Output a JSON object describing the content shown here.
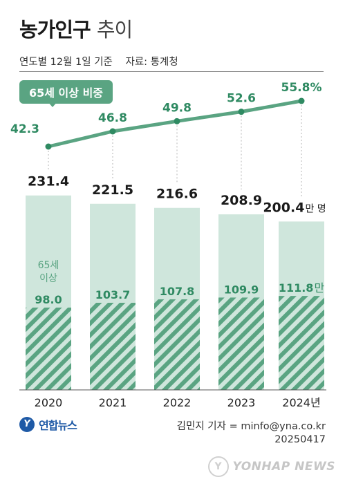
{
  "title": {
    "main": "농가인구",
    "suffix": "추이"
  },
  "subtitle": {
    "basis": "연도별 12월 1일 기준",
    "source": "자료: 통계청"
  },
  "badge": "65세 이상 비중",
  "colors": {
    "bar_light": "#cfe6dc",
    "hatch": "#5aa482",
    "line": "#5aa482",
    "label_green": "#2f8a62"
  },
  "chart_data": {
    "type": "bar",
    "categories": [
      "2020",
      "2021",
      "2022",
      "2023",
      "2024년"
    ],
    "series": [
      {
        "name": "",
        "values": [
          231.4,
          221.5,
          216.6,
          208.9,
          200.4
        ]
      },
      {
        "name": "65세 이상",
        "values": [
          98.0,
          103.7,
          107.8,
          109.9,
          111.8
        ]
      }
    ],
    "line": {
      "name": "65세 이상 비중",
      "values": [
        42.3,
        46.8,
        49.8,
        52.6,
        55.8
      ]
    },
    "total_labels": [
      "231.4",
      "221.5",
      "216.6",
      "208.9",
      "200.4"
    ],
    "total_unit": "만 명",
    "senior_labels": [
      "98.0",
      "103.7",
      "107.8",
      "109.9",
      "111.8"
    ],
    "senior_unit": "만",
    "senior_caption": [
      "65세",
      "이상"
    ],
    "line_labels": [
      "42.3",
      "46.8",
      "49.8",
      "52.6",
      "55.8%"
    ],
    "ylim": [
      0,
      240
    ]
  },
  "footer": {
    "logo_text": "연합뉴스",
    "reporter": "김민지 기자 = minfo@yna.co.kr",
    "date": "20250417",
    "watermark": "YONHAP NEWS"
  }
}
